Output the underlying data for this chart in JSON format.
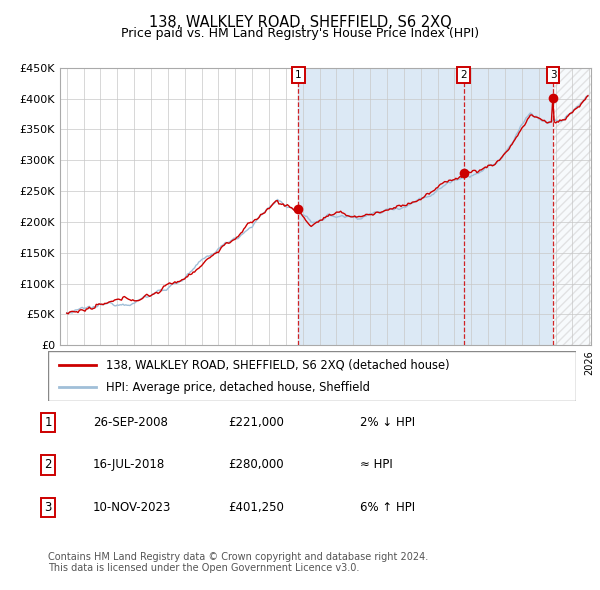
{
  "title": "138, WALKLEY ROAD, SHEFFIELD, S6 2XQ",
  "subtitle": "Price paid vs. HM Land Registry's House Price Index (HPI)",
  "ylim": [
    0,
    450000
  ],
  "yticks": [
    0,
    50000,
    100000,
    150000,
    200000,
    250000,
    300000,
    350000,
    400000,
    450000
  ],
  "ytick_labels": [
    "£0",
    "£50K",
    "£100K",
    "£150K",
    "£200K",
    "£250K",
    "£300K",
    "£350K",
    "£400K",
    "£450K"
  ],
  "x_start_year": 1995,
  "x_end_year": 2026,
  "hpi_color": "#a0bfd8",
  "price_color": "#cc0000",
  "plot_bg_color": "#ffffff",
  "shaded_bg_color": "#dce9f5",
  "grid_color": "#c8c8c8",
  "transaction_years_decimal": [
    2008.747,
    2018.542,
    2023.858
  ],
  "transaction_prices": [
    221000,
    280000,
    401250
  ],
  "transaction_labels": [
    "1",
    "2",
    "3"
  ],
  "transaction_date_strs": [
    "26-SEP-2008",
    "16-JUL-2018",
    "10-NOV-2023"
  ],
  "transaction_price_strs": [
    "£221,000",
    "£280,000",
    "£401,250"
  ],
  "transaction_hpi_strs": [
    "2% ↓ HPI",
    "≈ HPI",
    "6% ↑ HPI"
  ],
  "legend_line1": "138, WALKLEY ROAD, SHEFFIELD, S6 2XQ (detached house)",
  "legend_line2": "HPI: Average price, detached house, Sheffield",
  "footer": "Contains HM Land Registry data © Crown copyright and database right 2024.\nThis data is licensed under the Open Government Licence v3.0."
}
